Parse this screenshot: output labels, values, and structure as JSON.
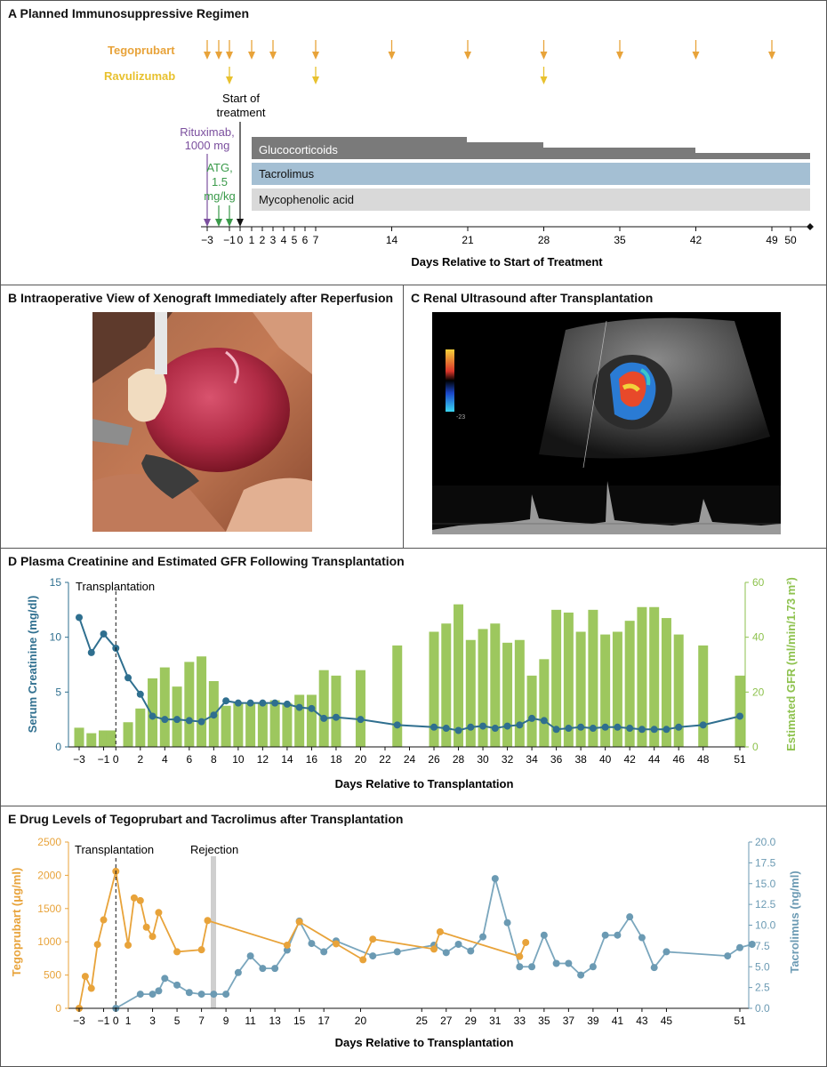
{
  "panelA": {
    "title": "A  Planned Immunosuppressive Regimen",
    "tegoprubart_label": "Tegoprubart",
    "ravulizumab_label": "Ravulizumab",
    "tegoprubart_days": [
      -3,
      -2,
      -1,
      1,
      3,
      7,
      14,
      21,
      28,
      35,
      42,
      49
    ],
    "ravulizumab_days": [
      -1,
      7,
      28
    ],
    "start_label_1": "Start of",
    "start_label_2": "treatment",
    "rituximab_1": "Rituximab,",
    "rituximab_2": "1000 mg",
    "atg_1": "ATG,",
    "atg_2": "1.5",
    "atg_3": "mg/kg",
    "bars": {
      "glucocorticoids": "Glucocorticoids",
      "tacrolimus": "Tacrolimus",
      "mycophenolic": "Mycophenolic acid"
    },
    "axis_ticks": [
      "−3",
      "−1",
      "0",
      "1",
      "2",
      "3",
      "4",
      "5",
      "6",
      "7",
      "14",
      "21",
      "28",
      "35",
      "42",
      "49",
      "50"
    ],
    "xlabel": "Days Relative to Start of Treatment",
    "colors": {
      "tegoprubart": "#e8a33a",
      "ravulizumab": "#e8c12e",
      "rituximab": "#7b4f9e",
      "atg": "#3a9a4a",
      "gluco": "#7a7a7a",
      "tacro": "#a4bfd3",
      "myco": "#d9d9d9"
    }
  },
  "panelB": {
    "title": "B  Intraoperative View of Xenograft Immediately after Reperfusion"
  },
  "panelC": {
    "title": "C  Renal Ultrasound after Transplantation",
    "scale_label": "-23\ncm/s"
  },
  "chart_data": [
    {
      "type": "bar+line",
      "title": "D  Plasma Creatinine and Estimated GFR Following Transplantation",
      "xlabel": "Days Relative to Transplantation",
      "ylabel": "Serum Creatinine (mg/dl)",
      "y2label": "Estimated GFR (ml/min/1.73 m²)",
      "ylim": [
        0,
        15
      ],
      "y2lim": [
        0,
        60
      ],
      "yticks": [
        0,
        5,
        10,
        15
      ],
      "y2ticks": [
        0,
        20,
        40,
        60
      ],
      "xticks": [
        "−3",
        "−1",
        "0",
        "2",
        "4",
        "6",
        "8",
        "10",
        "12",
        "14",
        "16",
        "18",
        "20",
        "22",
        "24",
        "26",
        "28",
        "30",
        "32",
        "34",
        "36",
        "38",
        "40",
        "42",
        "44",
        "46",
        "48",
        "51"
      ],
      "annotation": "Transplantation",
      "gfr": {
        "x": [
          -3,
          -2,
          -1,
          -0.4,
          1,
          2,
          3,
          4,
          5,
          6,
          7,
          8,
          9,
          10,
          11,
          12,
          13,
          14,
          15,
          16,
          17,
          18,
          20,
          23,
          26,
          27,
          28,
          29,
          30,
          31,
          32,
          33,
          34,
          35,
          36,
          37,
          38,
          39,
          40,
          41,
          42,
          43,
          44,
          45,
          46,
          48,
          51
        ],
        "values": [
          7,
          5,
          6,
          6,
          9,
          14,
          25,
          29,
          22,
          31,
          33,
          24,
          15,
          16,
          16,
          16,
          17,
          16,
          19,
          19,
          28,
          26,
          28,
          37,
          42,
          45,
          52,
          39,
          43,
          45,
          38,
          39,
          26,
          32,
          50,
          49,
          42,
          50,
          41,
          42,
          46,
          51,
          51,
          47,
          41,
          37,
          26
        ]
      },
      "creatinine": {
        "x": [
          -3,
          -2,
          -1,
          0,
          1,
          2,
          3,
          4,
          5,
          6,
          7,
          8,
          9,
          10,
          11,
          12,
          13,
          14,
          15,
          16,
          17,
          18,
          20,
          23,
          26,
          27,
          28,
          29,
          30,
          31,
          32,
          33,
          34,
          35,
          36,
          37,
          38,
          39,
          40,
          41,
          42,
          43,
          44,
          45,
          46,
          48,
          51
        ],
        "values": [
          11.8,
          8.6,
          10.3,
          9.0,
          6.3,
          4.8,
          2.8,
          2.5,
          2.5,
          2.4,
          2.3,
          2.9,
          4.2,
          4.0,
          4.0,
          4.0,
          4.0,
          3.9,
          3.6,
          3.5,
          2.6,
          2.7,
          2.5,
          2.0,
          1.8,
          1.7,
          1.5,
          1.8,
          1.9,
          1.7,
          1.9,
          2.0,
          2.6,
          2.4,
          1.6,
          1.7,
          1.8,
          1.7,
          1.8,
          1.8,
          1.7,
          1.6,
          1.6,
          1.6,
          1.8,
          2.0,
          2.8
        ]
      }
    },
    {
      "type": "line",
      "title": "E  Drug Levels of Tegoprubart and Tacrolimus after Transplantation",
      "xlabel": "Days Relative to Transplantation",
      "ylabel": "Tegoprubart (μg/ml)",
      "y2label": "Tacrolimus (ng/ml)",
      "ylim": [
        0,
        2500
      ],
      "y2lim": [
        0,
        20
      ],
      "yticks": [
        0,
        500,
        1000,
        1500,
        2000,
        2500
      ],
      "y2ticks": [
        "0.0",
        "2.5",
        "5.0",
        "7.5",
        "10.0",
        "12.5",
        "15.0",
        "17.5",
        "20.0"
      ],
      "xticks": [
        "−3",
        "−1",
        "0",
        "1",
        "3",
        "5",
        "7",
        "9",
        "11",
        "13",
        "15",
        "17",
        "20",
        "25",
        "27",
        "29",
        "31",
        "33",
        "35",
        "37",
        "39",
        "41",
        "43",
        "45",
        "51"
      ],
      "annotations": [
        "Transplantation",
        "Rejection"
      ],
      "tegoprubart": {
        "x": [
          -3,
          -2.5,
          -2,
          -1.5,
          -1,
          0,
          1,
          1.5,
          2,
          2.5,
          3,
          3.5,
          5,
          7,
          7.5,
          14,
          15,
          18,
          20.2,
          21,
          26,
          26.5,
          33,
          33.5
        ],
        "values": [
          0,
          480,
          300,
          960,
          1330,
          2060,
          950,
          1660,
          1620,
          1220,
          1080,
          1440,
          850,
          880,
          1320,
          950,
          1300,
          970,
          730,
          1040,
          890,
          1150,
          780,
          990
        ]
      },
      "tacrolimus": {
        "x": [
          0,
          2,
          3,
          3.5,
          4,
          5,
          6,
          7,
          8,
          9,
          10,
          11,
          12,
          13,
          14,
          15,
          16,
          17,
          18,
          21,
          23,
          26,
          27,
          28,
          29,
          30,
          31,
          32,
          33,
          34,
          35,
          36,
          37,
          38,
          39,
          40,
          41,
          42,
          43,
          44,
          45,
          50,
          51,
          52
        ],
        "values": [
          0,
          1.7,
          1.7,
          2.1,
          3.6,
          2.8,
          1.9,
          1.7,
          1.7,
          1.7,
          4.3,
          6.3,
          4.8,
          4.8,
          7.0,
          10.5,
          7.8,
          6.8,
          8.1,
          6.3,
          6.8,
          7.6,
          6.7,
          7.7,
          6.9,
          8.6,
          15.6,
          10.3,
          5.0,
          5.0,
          8.8,
          5.4,
          5.4,
          4.0,
          5.0,
          8.8,
          8.8,
          11.0,
          8.5,
          4.9,
          6.8,
          6.3,
          7.3,
          7.7
        ]
      }
    }
  ]
}
